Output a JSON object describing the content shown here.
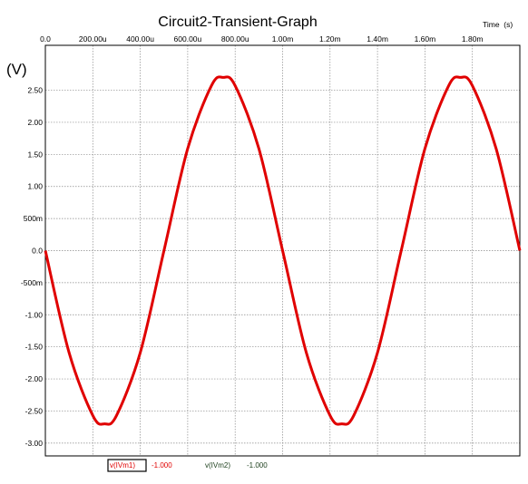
{
  "chart_data": {
    "type": "line",
    "title": "Circuit2-Transient-Graph",
    "xlabel": "Time  (s)",
    "ylabel": "(V)",
    "xlim": [
      0,
      0.002
    ],
    "ylim": [
      -3.2,
      3.2
    ],
    "grid": true,
    "x_ticks": [
      0,
      0.0002,
      0.0004,
      0.0006,
      0.0008,
      0.001,
      0.0012,
      0.0014,
      0.0016,
      0.0018
    ],
    "x_tick_labels": [
      "0.0",
      "200.00u",
      "400.00u",
      "600.00u",
      "800.00u",
      "1.00m",
      "1.20m",
      "1.40m",
      "1.60m",
      "1.80m"
    ],
    "y_ticks": [
      2.5,
      2.0,
      1.5,
      1.0,
      0.5,
      0.0,
      -0.5,
      -1.0,
      -1.5,
      -2.0,
      -2.5,
      -3.0
    ],
    "y_tick_labels": [
      "2.50",
      "2.00",
      "1.50",
      "1.00",
      "500m",
      "0.0",
      "-500m",
      "-1.00",
      "-1.50",
      "-2.00",
      "-2.50",
      "-3.00"
    ],
    "series": [
      {
        "name": "v(IVm1)",
        "color": "#e00000",
        "x": [
          0,
          0.0001,
          0.0002,
          0.00025,
          0.0003,
          0.0004,
          0.0005,
          0.0006,
          0.0007,
          0.00075,
          0.0008,
          0.0009,
          0.001,
          0.0011,
          0.0012,
          0.00125,
          0.0013,
          0.0014,
          0.0015,
          0.0016,
          0.0017,
          0.00175,
          0.0018,
          0.0019,
          0.002
        ],
        "values": [
          0.0,
          -1.59,
          -2.57,
          -2.7,
          -2.57,
          -1.59,
          0.0,
          1.59,
          2.57,
          2.7,
          2.57,
          1.59,
          0.0,
          -1.59,
          -2.57,
          -2.7,
          -2.57,
          -1.59,
          0.0,
          1.59,
          2.57,
          2.7,
          2.57,
          1.59,
          0.0
        ]
      }
    ],
    "legend": [
      {
        "label": "v(IVm1)",
        "value": "-1.000",
        "color": "#e00000"
      },
      {
        "label": "v(IVm2)",
        "value": "-1.000",
        "color": "#1a3d1a"
      }
    ]
  }
}
